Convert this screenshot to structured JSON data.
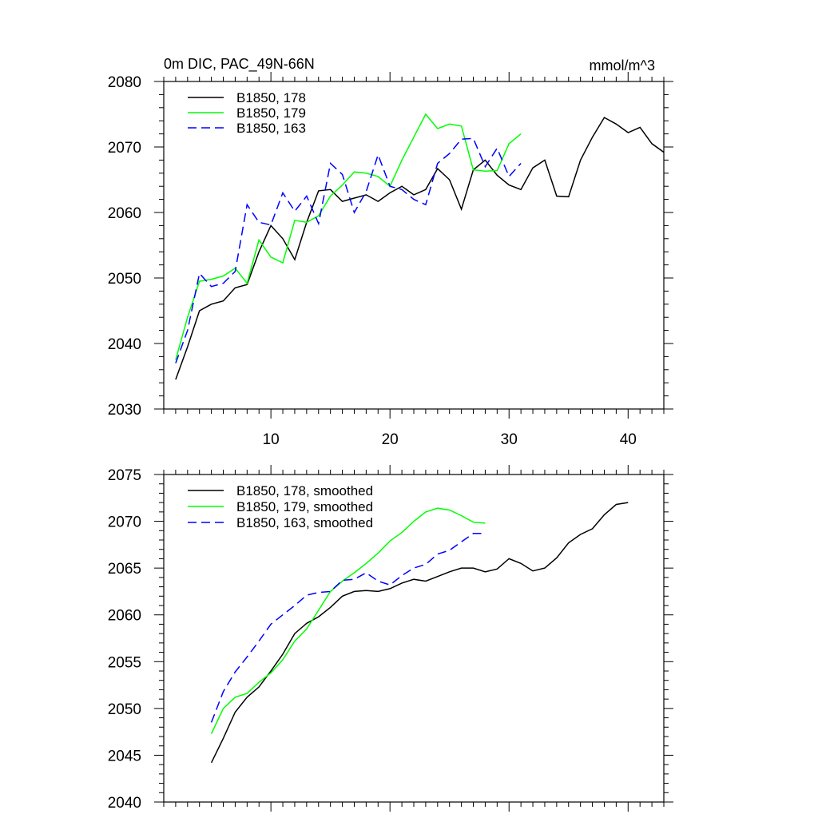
{
  "chart_data": [
    {
      "type": "line",
      "title": "0m DIC, PAC_49N-66N",
      "units": "mmol/m^3",
      "xlabel": "",
      "ylabel": "",
      "xlim": [
        1,
        43
      ],
      "ylim": [
        2030,
        2080
      ],
      "x_ticks": [
        10,
        20,
        30,
        40
      ],
      "y_ticks": [
        2030,
        2040,
        2050,
        2060,
        2070,
        2080
      ],
      "legend_position": "top-left",
      "series": [
        {
          "name": "B1850, 178",
          "color": "#000000",
          "dash": "solid",
          "x": [
            2,
            3,
            4,
            5,
            6,
            7,
            8,
            9,
            10,
            11,
            12,
            13,
            14,
            15,
            16,
            17,
            18,
            19,
            20,
            21,
            22,
            23,
            24,
            25,
            26,
            27,
            28,
            29,
            30,
            31,
            32,
            33,
            34,
            35,
            36,
            37,
            38,
            39,
            40,
            41,
            42,
            43
          ],
          "values": [
            2034.5,
            2039.5,
            2045,
            2046,
            2046.5,
            2048.5,
            2049,
            2054,
            2058,
            2056,
            2052.8,
            2058.5,
            2063.3,
            2063.5,
            2061.7,
            2062.2,
            2062.7,
            2061.7,
            2063,
            2064,
            2062.7,
            2063.5,
            2066.7,
            2065,
            2060.5,
            2066.5,
            2068,
            2065.7,
            2064.2,
            2063.5,
            2066.8,
            2068,
            2062.5,
            2062.4,
            2068,
            2071.5,
            2074.5,
            2073.5,
            2072.2,
            2073,
            2070.5,
            2069.2
          ]
        },
        {
          "name": "B1850, 179",
          "color": "#00ff00",
          "dash": "solid",
          "x": [
            2,
            3,
            4,
            5,
            6,
            7,
            8,
            9,
            10,
            11,
            12,
            13,
            14,
            15,
            16,
            17,
            18,
            19,
            20,
            21,
            22,
            23,
            24,
            25,
            26,
            27,
            28,
            29,
            30,
            31
          ],
          "values": [
            2037.5,
            2044,
            2049.5,
            2049.8,
            2050.3,
            2051.5,
            2049.2,
            2055.8,
            2053.2,
            2052.3,
            2058.8,
            2058.5,
            2059.5,
            2062.5,
            2064.2,
            2066.2,
            2066,
            2065.5,
            2064,
            2068,
            2071.5,
            2075,
            2072.8,
            2073.5,
            2073.2,
            2066.5,
            2066.3,
            2066.4,
            2070.5,
            2072
          ]
        },
        {
          "name": "B1850, 163",
          "color": "#0000ff",
          "dash": "dashed",
          "x": [
            2,
            3,
            4,
            5,
            6,
            7,
            8,
            9,
            10,
            11,
            12,
            13,
            14,
            15,
            16,
            17,
            18,
            19,
            20,
            21,
            22,
            23,
            24,
            25,
            26,
            27,
            28,
            29,
            30,
            31
          ],
          "values": [
            2037,
            2042,
            2050.7,
            2048.7,
            2049.2,
            2051,
            2061.2,
            2058.5,
            2058.1,
            2063,
            2060.2,
            2062.5,
            2058.3,
            2067.5,
            2065.8,
            2060,
            2063.2,
            2068.8,
            2064,
            2063.5,
            2062,
            2061.2,
            2067.5,
            2069,
            2071.2,
            2071.3,
            2067,
            2069.8,
            2065.5,
            2067.5
          ]
        }
      ]
    },
    {
      "type": "line",
      "title": "",
      "xlabel": "",
      "ylabel": "",
      "xlim": [
        1,
        43
      ],
      "ylim": [
        2040,
        2075
      ],
      "x_ticks": [
        10,
        20,
        30,
        40
      ],
      "y_ticks": [
        2040,
        2045,
        2050,
        2055,
        2060,
        2065,
        2070,
        2075
      ],
      "legend_position": "top-left",
      "series": [
        {
          "name": "B1850, 178, smoothed",
          "color": "#000000",
          "dash": "solid",
          "x": [
            5,
            6,
            7,
            8,
            9,
            10,
            11,
            12,
            13,
            14,
            15,
            16,
            17,
            18,
            19,
            20,
            21,
            22,
            23,
            24,
            25,
            26,
            27,
            28,
            29,
            30,
            31,
            32,
            33,
            34,
            35,
            36,
            37,
            38,
            39,
            40
          ],
          "values": [
            2044.2,
            2046.8,
            2049.6,
            2051.2,
            2052.3,
            2054,
            2055.8,
            2058,
            2059.1,
            2059.8,
            2060.8,
            2062,
            2062.5,
            2062.6,
            2062.5,
            2062.8,
            2063.4,
            2063.8,
            2063.6,
            2064.1,
            2064.6,
            2065,
            2065,
            2064.6,
            2064.9,
            2066,
            2065.5,
            2064.7,
            2065,
            2066.1,
            2067.7,
            2068.6,
            2069.2,
            2070.7,
            2071.8,
            2072
          ]
        },
        {
          "name": "B1850, 179, smoothed",
          "color": "#00ff00",
          "dash": "solid",
          "x": [
            5,
            6,
            7,
            8,
            9,
            10,
            11,
            12,
            13,
            14,
            15,
            16,
            17,
            18,
            19,
            20,
            21,
            22,
            23,
            24,
            25,
            26,
            27,
            28
          ],
          "values": [
            2047.3,
            2050,
            2051.2,
            2051.6,
            2052.8,
            2053.8,
            2055.2,
            2057.2,
            2058.5,
            2060.5,
            2062.5,
            2063.6,
            2064.5,
            2065.5,
            2066.6,
            2067.9,
            2068.8,
            2070,
            2071,
            2071.4,
            2071.2,
            2070.6,
            2069.9,
            2069.8
          ]
        },
        {
          "name": "B1850, 163, smoothed",
          "color": "#0000ff",
          "dash": "dashed",
          "x": [
            5,
            6,
            7,
            8,
            9,
            10,
            11,
            12,
            13,
            14,
            15,
            16,
            17,
            18,
            19,
            20,
            21,
            22,
            23,
            24,
            25,
            26,
            27,
            28
          ],
          "values": [
            2048.5,
            2051.8,
            2053.9,
            2055.5,
            2057.2,
            2059,
            2060,
            2061,
            2062.1,
            2062.4,
            2062.5,
            2063.7,
            2063.8,
            2064.5,
            2063.6,
            2063.2,
            2064.2,
            2065,
            2065.4,
            2066.5,
            2066.9,
            2067.8,
            2068.7,
            2068.7
          ]
        }
      ]
    }
  ]
}
